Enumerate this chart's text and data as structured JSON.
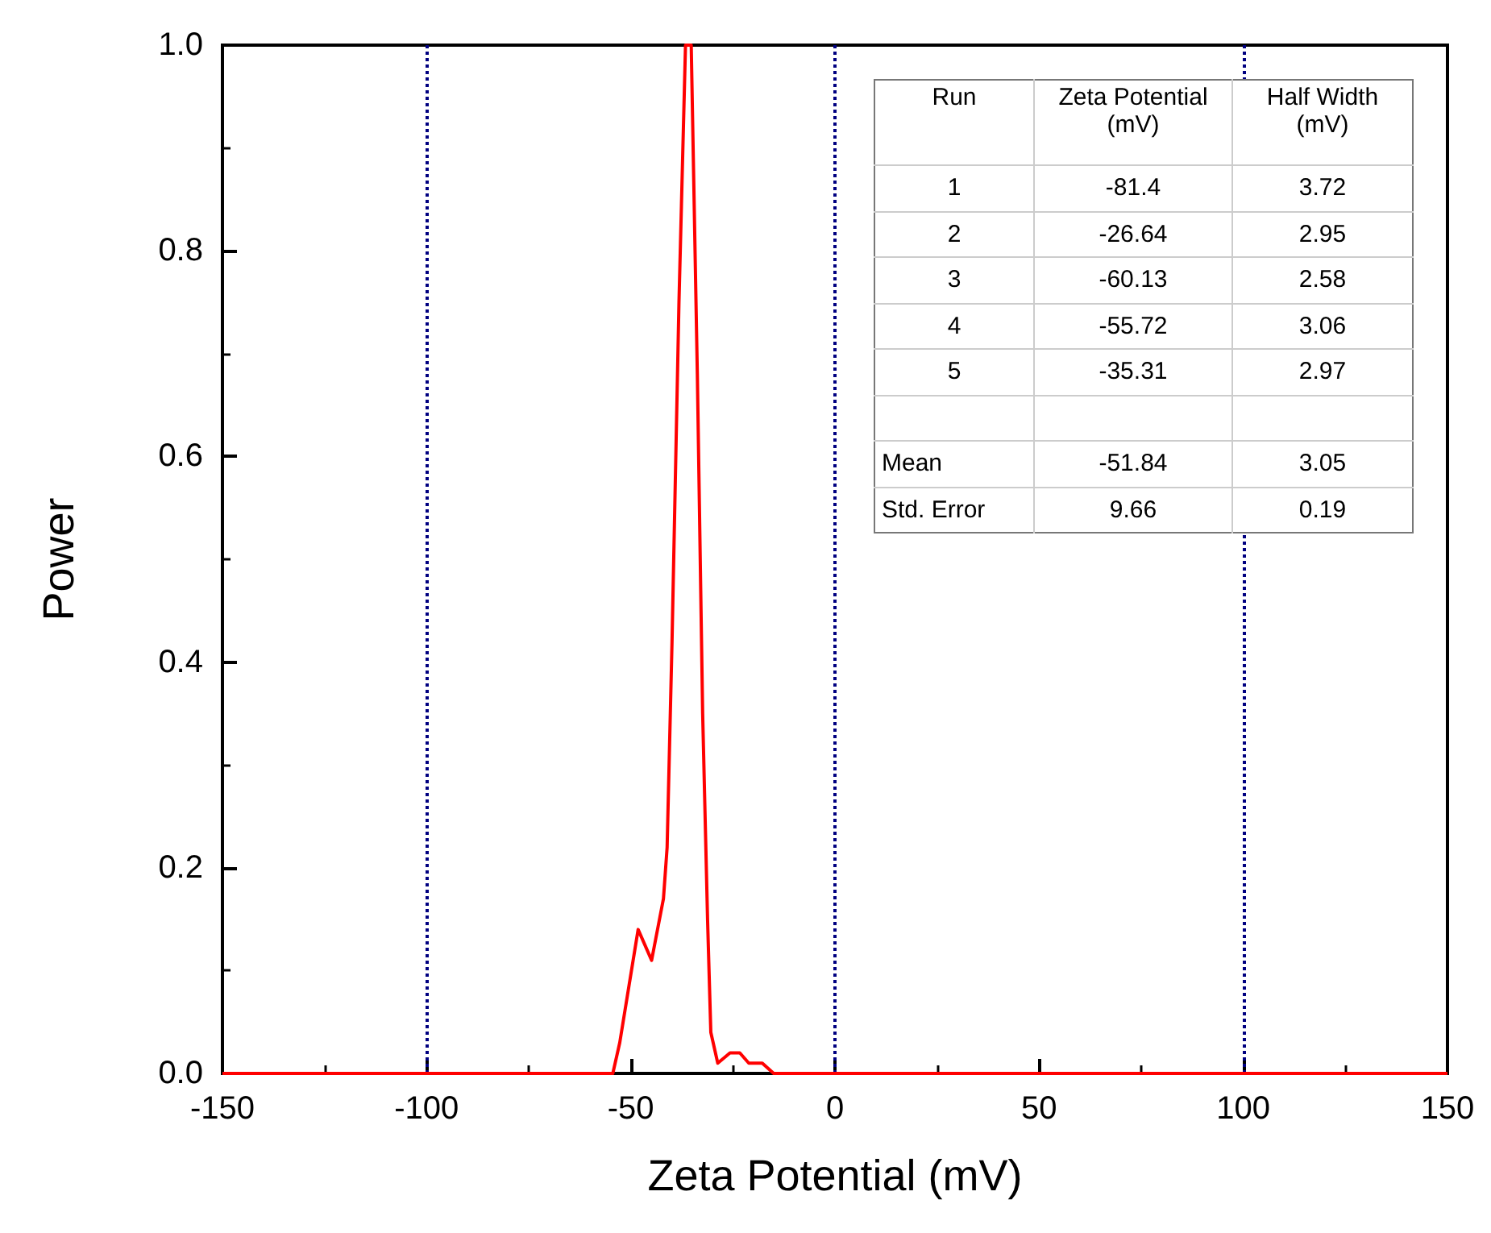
{
  "chart_data": {
    "type": "line",
    "xlabel": "Zeta Potential (mV)",
    "ylabel": "Power",
    "x": [
      -150,
      -54.4,
      -52.7,
      -48.2,
      -44.9,
      -42.0,
      -41.1,
      -39.9,
      -38.2,
      -36.6,
      -35.2,
      -33.7,
      -32.4,
      -31.2,
      -30.4,
      -28.7,
      -25.7,
      -23.3,
      -21.1,
      -17.8,
      -15.0,
      -12.4,
      150
    ],
    "series": [
      {
        "color": "#ff0000",
        "values": [
          0,
          0,
          0.03,
          0.14,
          0.11,
          0.17,
          0.22,
          0.42,
          0.75,
          1.0,
          1.0,
          0.68,
          0.35,
          0.15,
          0.04,
          0.01,
          0.02,
          0.02,
          0.01,
          0.01,
          0,
          0,
          0
        ]
      }
    ],
    "xlim": [
      -150,
      150
    ],
    "xticks": [
      -150,
      -100,
      -50,
      0,
      50,
      100,
      150
    ],
    "ylim": [
      0,
      1
    ],
    "yticks": [
      {
        "value": 0,
        "label": "0.0"
      },
      {
        "value": 0.2,
        "label": "0.2"
      },
      {
        "value": 0.4,
        "label": "0.4"
      },
      {
        "value": 0.6,
        "label": "0.6"
      },
      {
        "value": 0.8,
        "label": "0.8"
      },
      {
        "value": 1,
        "label": "1.0"
      }
    ],
    "ref_lines": [
      {
        "axis": "x",
        "value": -100,
        "color": "#000080",
        "line_style": "dotted"
      },
      {
        "axis": "x",
        "value": 0,
        "color": "#000080",
        "line_style": "dotted"
      },
      {
        "axis": "x",
        "value": 100,
        "color": "#000080",
        "line_style": "dotted"
      }
    ],
    "annotations": [
      "Run",
      "Zeta Potential (mV)",
      "Half Width (mV)",
      "1",
      "-81.4",
      "3.72",
      "2",
      "-26.64",
      "2.95",
      "3",
      "-60.13",
      "2.58",
      "4",
      "-55.72",
      "3.06",
      "5",
      "-35.31",
      "2.97",
      "Mean",
      "-51.84",
      "3.05",
      "Std. Error",
      "9.66",
      "0.19"
    ],
    "grid": false
  }
}
